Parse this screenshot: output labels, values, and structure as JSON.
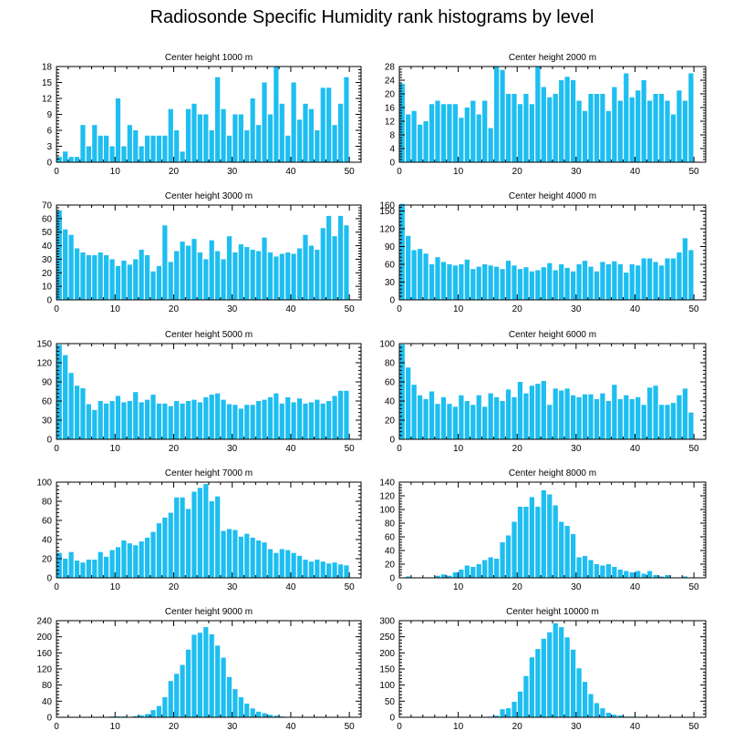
{
  "title": "Radiosonde Specific Humidity rank histograms by level",
  "colors": {
    "bar": "#1ebef0",
    "axis": "#000000",
    "background": "#ffffff"
  },
  "chart_data": [
    {
      "type": "bar",
      "title": "Center height 1000 m",
      "xlabel": "",
      "ylabel": "",
      "x_start": 0,
      "xlim": [
        0,
        52
      ],
      "xticks": [
        0,
        10,
        20,
        30,
        40,
        50
      ],
      "ylim": [
        0,
        18
      ],
      "yticks": [
        0,
        3,
        6,
        9,
        12,
        15,
        18
      ],
      "values": [
        1,
        2,
        1,
        1,
        7,
        3,
        7,
        5,
        5,
        3,
        12,
        3,
        7,
        6,
        3,
        5,
        5,
        5,
        5,
        10,
        6,
        2,
        10,
        11,
        9,
        9,
        6,
        16,
        10,
        5,
        9,
        9,
        6,
        12,
        7,
        15,
        9,
        18,
        11,
        5,
        15,
        8,
        11,
        10,
        6,
        14,
        14,
        7,
        11,
        16
      ]
    },
    {
      "type": "bar",
      "title": "Center height 2000 m",
      "xlabel": "",
      "ylabel": "",
      "x_start": 0,
      "xlim": [
        0,
        52
      ],
      "xticks": [
        0,
        10,
        20,
        30,
        40,
        50
      ],
      "ylim": [
        0,
        28
      ],
      "yticks": [
        0,
        4,
        8,
        12,
        16,
        20,
        24,
        28
      ],
      "values": [
        23,
        14,
        15,
        11,
        12,
        17,
        18,
        17,
        17,
        17,
        13,
        16,
        18,
        14,
        18,
        10,
        28,
        27,
        20,
        20,
        17,
        20,
        17,
        28,
        22,
        19,
        20,
        24,
        25,
        24,
        18,
        15,
        20,
        20,
        20,
        15,
        22,
        18,
        26,
        19,
        21,
        24,
        18,
        20,
        20,
        18,
        14,
        21,
        18,
        26
      ]
    },
    {
      "type": "bar",
      "title": "Center height 3000 m",
      "xlabel": "",
      "ylabel": "",
      "x_start": 0,
      "xlim": [
        0,
        52
      ],
      "xticks": [
        0,
        10,
        20,
        30,
        40,
        50
      ],
      "ylim": [
        0,
        70
      ],
      "yticks": [
        0,
        10,
        20,
        30,
        40,
        50,
        60,
        70
      ],
      "values": [
        66,
        52,
        48,
        38,
        35,
        33,
        33,
        35,
        33,
        30,
        25,
        29,
        26,
        30,
        37,
        33,
        21,
        25,
        55,
        28,
        36,
        43,
        40,
        45,
        35,
        30,
        44,
        36,
        30,
        47,
        35,
        41,
        39,
        37,
        36,
        46,
        35,
        32,
        34,
        35,
        34,
        38,
        48,
        40,
        37,
        53,
        62,
        47,
        62,
        55
      ]
    },
    {
      "type": "bar",
      "title": "Center height 4000 m",
      "xlabel": "",
      "ylabel": "",
      "x_start": 0,
      "xlim": [
        0,
        52
      ],
      "xticks": [
        0,
        10,
        20,
        30,
        40,
        50
      ],
      "ylim": [
        0,
        160
      ],
      "yticks": [
        0,
        30,
        60,
        90,
        120,
        150,
        160
      ],
      "values": [
        162,
        108,
        84,
        86,
        78,
        60,
        72,
        64,
        60,
        58,
        60,
        68,
        52,
        56,
        60,
        58,
        56,
        52,
        66,
        58,
        52,
        55,
        48,
        50,
        55,
        62,
        50,
        60,
        54,
        48,
        60,
        66,
        56,
        48,
        64,
        60,
        65,
        60,
        46,
        60,
        58,
        70,
        70,
        64,
        58,
        70,
        70,
        80,
        104,
        84
      ]
    },
    {
      "type": "bar",
      "title": "Center height 5000 m",
      "xlabel": "",
      "ylabel": "",
      "x_start": 0,
      "xlim": [
        0,
        52
      ],
      "xticks": [
        0,
        10,
        20,
        30,
        40,
        50
      ],
      "ylim": [
        0,
        150
      ],
      "yticks": [
        0,
        30,
        60,
        90,
        120,
        150
      ],
      "values": [
        148,
        132,
        104,
        84,
        80,
        55,
        46,
        60,
        56,
        60,
        68,
        58,
        60,
        74,
        58,
        62,
        70,
        56,
        56,
        52,
        60,
        56,
        60,
        62,
        58,
        66,
        70,
        72,
        62,
        55,
        54,
        48,
        54,
        54,
        60,
        62,
        66,
        72,
        56,
        66,
        58,
        64,
        56,
        58,
        62,
        56,
        60,
        68,
        76,
        76
      ]
    },
    {
      "type": "bar",
      "title": "Center height 6000 m",
      "xlabel": "",
      "ylabel": "",
      "x_start": 0,
      "xlim": [
        0,
        52
      ],
      "xticks": [
        0,
        10,
        20,
        30,
        40,
        50
      ],
      "ylim": [
        0,
        100
      ],
      "yticks": [
        0,
        20,
        40,
        60,
        80,
        100
      ],
      "values": [
        99,
        75,
        57,
        46,
        42,
        50,
        37,
        44,
        37,
        34,
        46,
        40,
        36,
        46,
        34,
        48,
        44,
        40,
        52,
        44,
        60,
        48,
        56,
        58,
        61,
        36,
        53,
        51,
        53,
        46,
        44,
        47,
        47,
        42,
        48,
        40,
        57,
        42,
        46,
        42,
        44,
        36,
        54,
        56,
        36,
        36,
        38,
        46,
        53,
        28
      ]
    },
    {
      "type": "bar",
      "title": "Center height 7000 m",
      "xlabel": "",
      "ylabel": "",
      "x_start": 0,
      "xlim": [
        0,
        52
      ],
      "xticks": [
        0,
        10,
        20,
        30,
        40,
        50
      ],
      "ylim": [
        0,
        100
      ],
      "yticks": [
        0,
        20,
        40,
        60,
        80,
        100
      ],
      "values": [
        26,
        20,
        27,
        18,
        16,
        19,
        19,
        27,
        22,
        29,
        32,
        39,
        36,
        34,
        38,
        42,
        48,
        57,
        63,
        68,
        84,
        84,
        72,
        90,
        94,
        98,
        80,
        85,
        49,
        51,
        50,
        43,
        46,
        42,
        39,
        37,
        30,
        26,
        30,
        29,
        26,
        23,
        19,
        17,
        19,
        17,
        15,
        16,
        14,
        13
      ]
    },
    {
      "type": "bar",
      "title": "Center height 8000 m",
      "xlabel": "",
      "ylabel": "",
      "x_start": 0,
      "xlim": [
        0,
        52
      ],
      "xticks": [
        0,
        10,
        20,
        30,
        40,
        50
      ],
      "ylim": [
        0,
        140
      ],
      "yticks": [
        0,
        20,
        40,
        60,
        80,
        100,
        120,
        140
      ],
      "values": [
        0,
        2,
        0,
        0,
        0,
        0,
        3,
        5,
        3,
        8,
        12,
        18,
        16,
        20,
        26,
        30,
        28,
        52,
        62,
        82,
        104,
        104,
        118,
        104,
        128,
        122,
        106,
        82,
        76,
        64,
        30,
        32,
        26,
        20,
        18,
        20,
        16,
        12,
        10,
        8,
        10,
        6,
        10,
        4,
        2,
        4,
        0,
        0,
        2,
        0
      ]
    },
    {
      "type": "bar",
      "title": "Center height 9000 m",
      "xlabel": "",
      "ylabel": "",
      "x_start": 0,
      "xlim": [
        0,
        52
      ],
      "xticks": [
        0,
        10,
        20,
        30,
        40,
        50
      ],
      "ylim": [
        0,
        240
      ],
      "yticks": [
        0,
        40,
        80,
        120,
        160,
        200,
        240
      ],
      "values": [
        0,
        0,
        0,
        0,
        0,
        0,
        0,
        0,
        0,
        2,
        2,
        2,
        0,
        3,
        5,
        8,
        18,
        28,
        50,
        90,
        108,
        130,
        168,
        205,
        210,
        224,
        206,
        178,
        148,
        100,
        70,
        50,
        34,
        22,
        14,
        10,
        6,
        4,
        2,
        0,
        0,
        0,
        0,
        0,
        0,
        0,
        0,
        0,
        0,
        0
      ]
    },
    {
      "type": "bar",
      "title": "Center height 10000 m",
      "xlabel": "",
      "ylabel": "",
      "x_start": 0,
      "xlim": [
        0,
        52
      ],
      "xticks": [
        0,
        10,
        20,
        30,
        40,
        50
      ],
      "ylim": [
        0,
        300
      ],
      "yticks": [
        0,
        50,
        100,
        150,
        200,
        250,
        300
      ],
      "values": [
        0,
        0,
        0,
        0,
        0,
        0,
        0,
        0,
        0,
        0,
        0,
        0,
        0,
        0,
        0,
        2,
        5,
        25,
        28,
        48,
        80,
        128,
        186,
        212,
        244,
        264,
        292,
        280,
        248,
        210,
        152,
        110,
        72,
        44,
        28,
        14,
        8,
        6,
        2,
        2,
        0,
        0,
        0,
        0,
        0,
        0,
        0,
        0,
        0,
        0
      ]
    }
  ]
}
